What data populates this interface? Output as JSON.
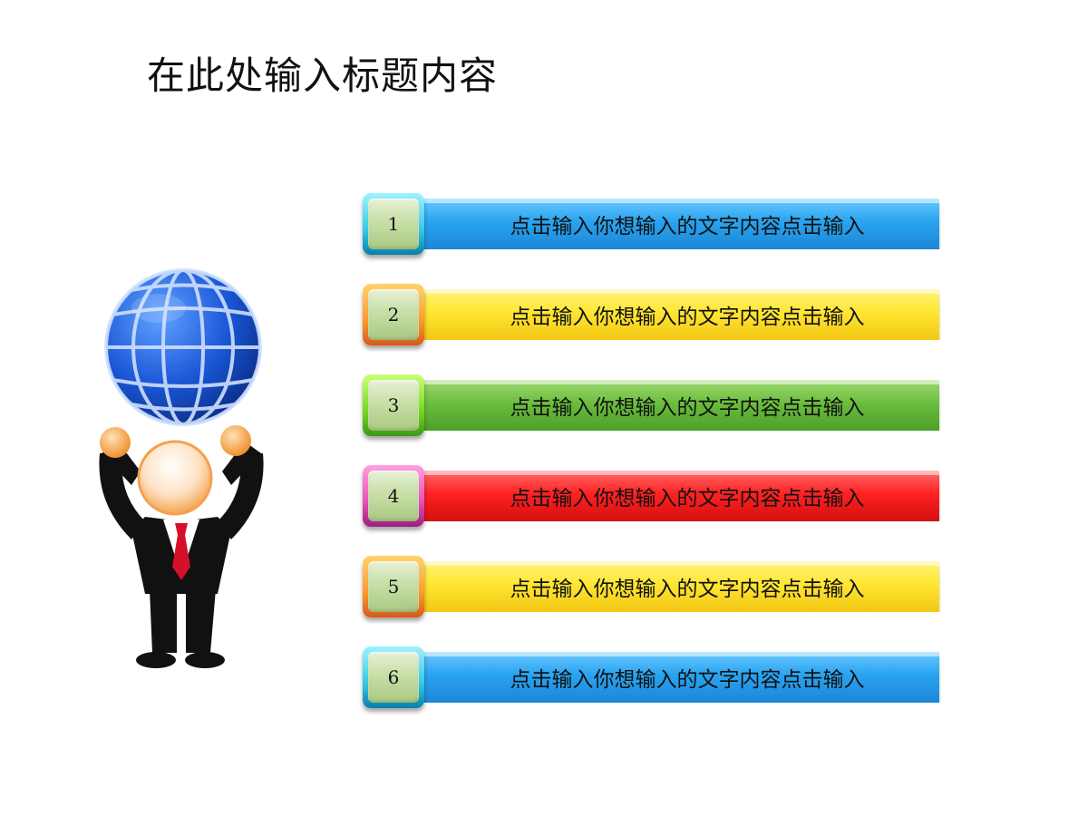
{
  "title": "在此处输入标题内容",
  "items": [
    {
      "number": "1",
      "text": "点击输入你想输入的文字内容点击输入",
      "color": "blue",
      "badge": "cyan"
    },
    {
      "number": "2",
      "text": "点击输入你想输入的文字内容点击输入",
      "color": "yellow",
      "badge": "orange"
    },
    {
      "number": "3",
      "text": "点击输入你想输入的文字内容点击输入",
      "color": "green",
      "badge": "green"
    },
    {
      "number": "4",
      "text": "点击输入你想输入的文字内容点击输入",
      "color": "red",
      "badge": "pink"
    },
    {
      "number": "5",
      "text": "点击输入你想输入的文字内容点击输入",
      "color": "yellow",
      "badge": "orange"
    },
    {
      "number": "6",
      "text": "点击输入你想输入的文字内容点击输入",
      "color": "blue",
      "badge": "cyan"
    }
  ],
  "colors": {
    "blue": "#28a4f0",
    "yellow": "#ffe633",
    "green": "#6cbe3e",
    "red": "#ff2222"
  },
  "illustration": "person-holding-globe-icon"
}
